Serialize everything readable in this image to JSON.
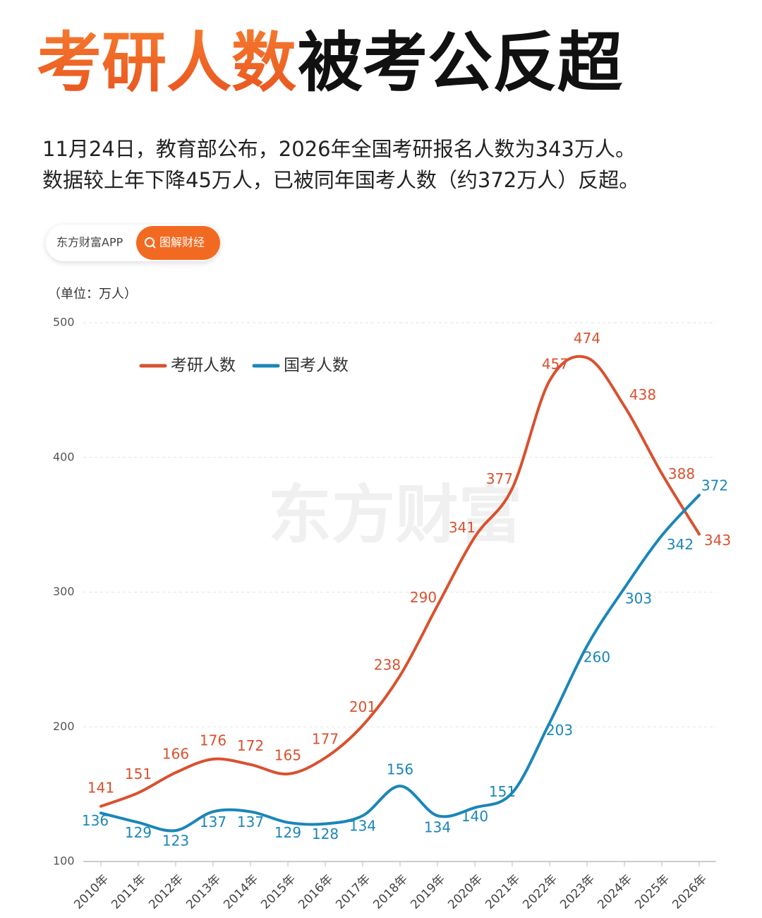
{
  "chart_data": {
    "type": "line",
    "title": {
      "highlight": "考研人数",
      "rest": "被考公反超"
    },
    "subtitle": [
      "11月24日，教育部公布，2026年全国考研报名人数为343万人。",
      "数据较上年下降45万人，已被同年国考人数（约372万人）反超。"
    ],
    "source_badge": {
      "brand": "东方财富APP",
      "tag": "图解财经"
    },
    "unit_label": "（单位：万人）",
    "watermark": "东方财富",
    "categories": [
      "2010年",
      "2011年",
      "2012年",
      "2013年",
      "2014年",
      "2015年",
      "2016年",
      "2017年",
      "2018年",
      "2019年",
      "2020年",
      "2021年",
      "2022年",
      "2023年",
      "2024年",
      "2025年",
      "2026年"
    ],
    "series": [
      {
        "name": "考研人数",
        "color": "#d9512f",
        "values": [
          141,
          151,
          166,
          176,
          172,
          165,
          177,
          201,
          238,
          290,
          341,
          377,
          457,
          474,
          438,
          388,
          343
        ]
      },
      {
        "name": "国考人数",
        "color": "#1a86b8",
        "values": [
          136,
          129,
          123,
          137,
          137,
          129,
          128,
          134,
          156,
          134,
          140,
          151,
          203,
          260,
          303,
          342,
          372
        ]
      }
    ],
    "ylim": [
      100,
      500
    ],
    "yticks": [
      100,
      200,
      300,
      400,
      500
    ],
    "grid": true,
    "legend": "top-left"
  }
}
